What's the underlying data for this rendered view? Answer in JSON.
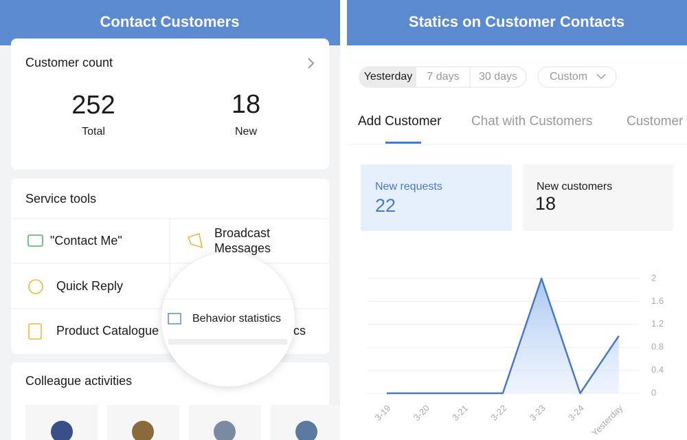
{
  "left": {
    "header": "Contact Customers",
    "customer_count": {
      "title": "Customer count",
      "total": 252,
      "total_label": "Total",
      "new": 18,
      "new_label": "New"
    },
    "service_tools": {
      "title": "Service tools",
      "items": [
        "\"Contact Me\"",
        "Broadcast Messages",
        "Quick Reply",
        "Product Catalogue"
      ]
    },
    "magnifier": "Behavior statistics",
    "colleague_activities": {
      "title": "Colleague activities"
    }
  },
  "right": {
    "header": "Statics on Customer Contacts",
    "ranges": [
      "Yesterday",
      "7 days",
      "30 days"
    ],
    "custom": "Custom",
    "tabs": [
      "Add Customer",
      "Chat with Customers",
      "Customer"
    ],
    "stats": [
      {
        "label": "New requests",
        "value": 22
      },
      {
        "label": "New customers",
        "value": 18
      }
    ]
  },
  "chart_data": {
    "type": "line",
    "categories": [
      "3-19",
      "3-20",
      "3-21",
      "3-22",
      "3-23",
      "3-24",
      "Yesterday"
    ],
    "values": [
      0,
      0,
      0,
      0,
      2,
      0,
      1
    ],
    "color": "#4a78c8",
    "ylim": [
      0,
      2
    ],
    "yticks": [
      0,
      0.4,
      0.8,
      1.2,
      1.6,
      2
    ],
    "grid": true
  }
}
